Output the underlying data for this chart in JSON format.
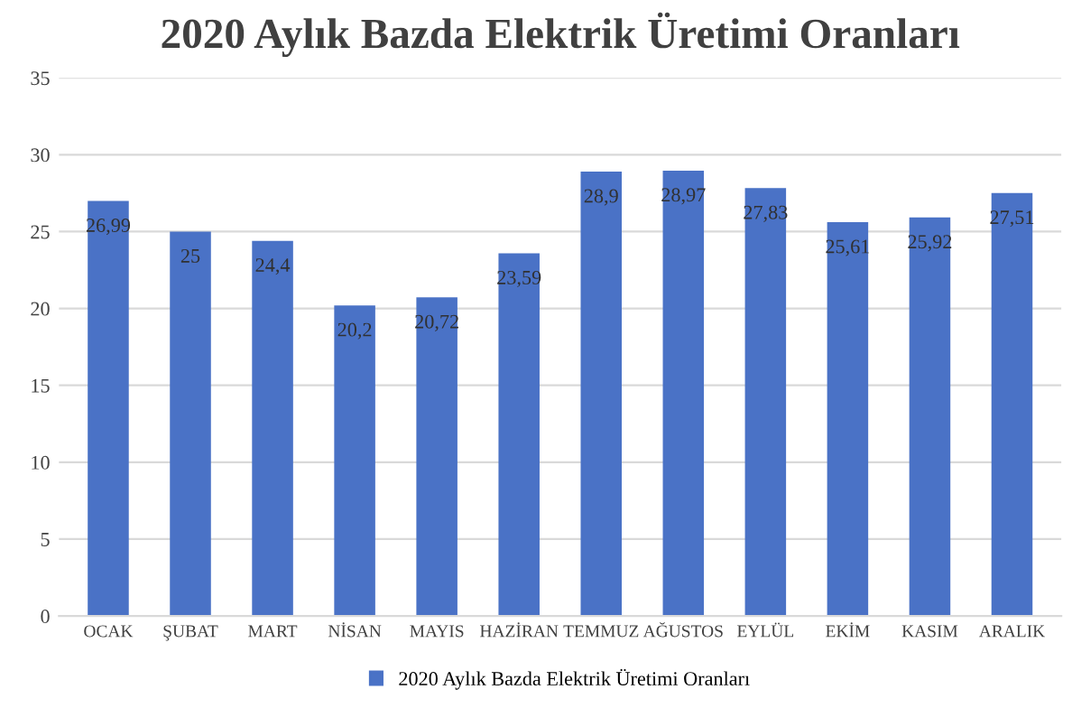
{
  "chart_data": {
    "type": "bar",
    "title": "2020 Aylık Bazda Elektrik Üretimi Oranları",
    "categories": [
      "OCAK",
      "ŞUBAT",
      "MART",
      "NİSAN",
      "MAYIS",
      "HAZİRAN",
      "TEMMUZ",
      "AĞUSTOS",
      "EYLÜL",
      "EKİM",
      "KASIM",
      "ARALIK"
    ],
    "series": [
      {
        "name": "2020 Aylık Bazda Elektrik Üretimi Oranları",
        "color": "#4a72c6",
        "values": [
          26.99,
          25,
          24.4,
          20.2,
          20.72,
          23.59,
          28.9,
          28.97,
          27.83,
          25.61,
          25.92,
          27.51
        ],
        "value_labels": [
          "26,99",
          "25",
          "24,4",
          "20,2",
          "20,72",
          "23,59",
          "28,9",
          "28,97",
          "27,83",
          "25,61",
          "25,92",
          "27,51"
        ]
      }
    ],
    "ylim": [
      0,
      35
    ],
    "yticks": [
      0,
      5,
      10,
      15,
      20,
      25,
      30,
      35
    ],
    "grid": "y",
    "legend": "bottom"
  }
}
